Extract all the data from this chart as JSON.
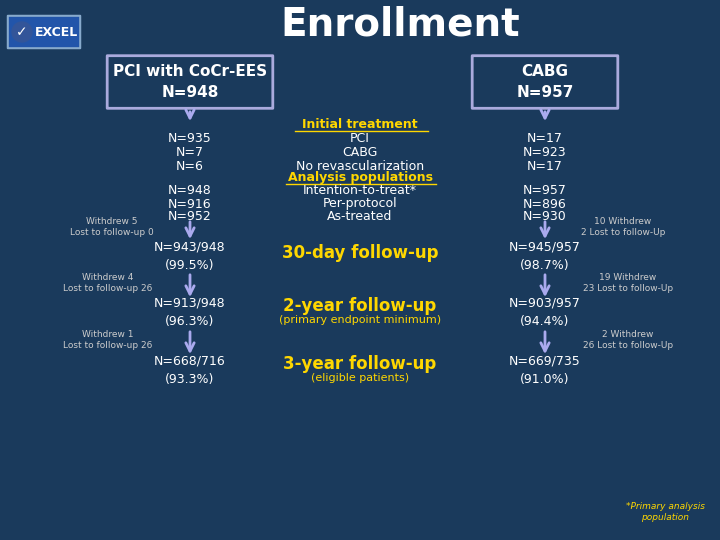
{
  "title": "Enrollment",
  "bg_color": "#1a3a5c",
  "title_color": "#ffffff",
  "title_fontsize": 28,
  "box_left_text": "PCI with CoCr-EES\nN=948",
  "box_right_text": "CABG\nN=957",
  "box_fill": "#1a3a5c",
  "box_edge": "#aaaadd",
  "gold_color": "#FFD700",
  "white_color": "#ffffff",
  "small_text_color": "#cccccc",
  "arrow_color": "#aaaaee",
  "left_col1": [
    "N=935",
    "N=7",
    "N=6"
  ],
  "right_col1": [
    "N=17",
    "N=923",
    "N=17"
  ],
  "center_header1": "Initial treatment",
  "center_col1": [
    "PCI",
    "CABG",
    "No revascularization"
  ],
  "center_header2": "Analysis populations",
  "center_col2": [
    "Intention-to-treat*",
    "Per-protocol",
    "As-treated"
  ],
  "left_col2": [
    "N=948",
    "N=916",
    "N=952"
  ],
  "right_col2": [
    "N=957",
    "N=896",
    "N=930"
  ],
  "left_withdrew1": "Withdrew 5\nLost to follow-up 0",
  "right_withdrew1": "10 Withdrew\n2 Lost to follow-Up",
  "left_30day": "N=943/948\n(99.5%)",
  "right_30day": "N=945/957\n(98.7%)",
  "center_30day": "30-day follow-up",
  "left_withdrew2": "Withdrew 4\nLost to follow-up 26",
  "right_withdrew2": "19 Withdrew\n23 Lost to follow-Up",
  "left_2year": "N=913/948\n(96.3%)",
  "right_2year": "N=903/957\n(94.4%)",
  "center_2year": "2-year follow-up",
  "center_2year_sub": "(primary endpoint minimum)",
  "left_withdrew3": "Withdrew 1\nLost to follow-up 26",
  "right_withdrew3": "2 Withdrew\n26 Lost to follow-Up",
  "left_3year": "N=668/716\n(93.3%)",
  "right_3year": "N=669/735\n(91.0%)",
  "center_3year": "3-year follow-up",
  "center_3year_sub": "(eligible patients)",
  "footnote": "*Primary analysis\npopulation"
}
